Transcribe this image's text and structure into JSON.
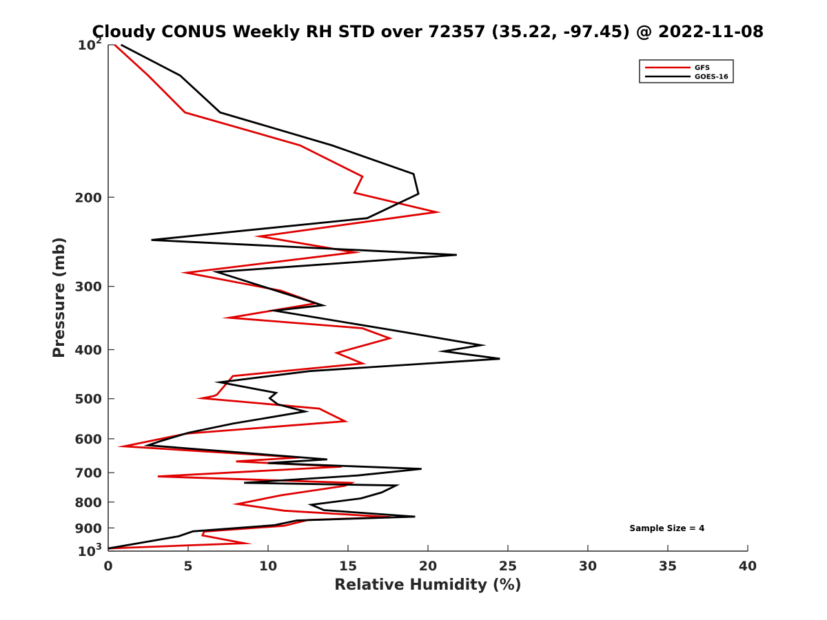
{
  "chart_data": {
    "type": "line",
    "title": "Cloudy CONUS Weekly RH STD over 72357 (35.22, -97.45) @ 2022-11-08",
    "xlabel": "Relative Humidity (%)",
    "ylabel": "Pressure (mb)",
    "xlim": [
      0,
      40
    ],
    "ylim": [
      100,
      1000
    ],
    "yscale": "log",
    "y_direction": "reverse",
    "x_ticks": [
      0,
      5,
      10,
      15,
      20,
      25,
      30,
      35,
      40
    ],
    "x_tick_labels": [
      "0",
      "5",
      "10",
      "15",
      "20",
      "25",
      "30",
      "35",
      "40"
    ],
    "y_ticks": [
      100,
      200,
      300,
      400,
      500,
      600,
      700,
      800,
      900,
      1000
    ],
    "y_tick_labels": [
      {
        "base": "10",
        "exp": "2"
      },
      {
        "base": "200",
        "exp": ""
      },
      {
        "base": "300",
        "exp": ""
      },
      {
        "base": "400",
        "exp": ""
      },
      {
        "base": "500",
        "exp": ""
      },
      {
        "base": "600",
        "exp": ""
      },
      {
        "base": "700",
        "exp": ""
      },
      {
        "base": "800",
        "exp": ""
      },
      {
        "base": "900",
        "exp": ""
      },
      {
        "base": "10",
        "exp": "3"
      }
    ],
    "legend_position": "top-right",
    "annotation": "Sample Size = 4",
    "series": [
      {
        "name": "GFS",
        "color": "#e00000",
        "x": [
          0.4,
          2.5,
          4.8,
          12.0,
          15.9,
          15.4,
          20.5,
          9.5,
          15.4,
          4.9,
          10.8,
          13.0,
          7.6,
          15.9,
          17.6,
          14.3,
          15.9,
          7.8,
          6.8,
          6.6,
          5.9,
          13.2,
          14.8,
          4.9,
          1.0,
          12.0,
          8.0,
          14.6,
          3.1,
          15.2,
          14.8,
          10.8,
          8.1,
          11.0,
          17.7,
          12.5,
          11.0,
          6.0,
          5.9,
          8.5,
          0.0
        ],
        "y": [
          100,
          115,
          136,
          158,
          182,
          196,
          214,
          239,
          257,
          282,
          306,
          324,
          346,
          363,
          380,
          406,
          426,
          451,
          491,
          494,
          499,
          523,
          554,
          586,
          621,
          653,
          665,
          681,
          712,
          733,
          743,
          776,
          807,
          832,
          857,
          868,
          891,
          915,
          931,
          965,
          988
        ]
      },
      {
        "name": "GOES-16",
        "color": "#000000",
        "x": [
          0.8,
          4.5,
          7.0,
          14.0,
          19.1,
          19.4,
          16.2,
          2.7,
          21.8,
          6.8,
          13.4,
          10.4,
          18.2,
          23.3,
          21.0,
          24.5,
          12.6,
          7.0,
          10.5,
          10.1,
          10.6,
          12.3,
          7.8,
          5.0,
          3.3,
          2.5,
          13.7,
          10.0,
          19.6,
          15.6,
          8.5,
          18.0,
          17.1,
          15.8,
          12.7,
          13.5,
          19.2,
          11.8,
          10.4,
          5.3,
          4.4,
          0.0
        ],
        "y": [
          100,
          115,
          136,
          158,
          180,
          197,
          220,
          243,
          260,
          281,
          327,
          335,
          368,
          392,
          403,
          417,
          441,
          464,
          487,
          499,
          513,
          530,
          560,
          584,
          606,
          618,
          659,
          670,
          688,
          709,
          733,
          742,
          766,
          787,
          810,
          830,
          855,
          870,
          889,
          914,
          935,
          988
        ]
      }
    ]
  }
}
